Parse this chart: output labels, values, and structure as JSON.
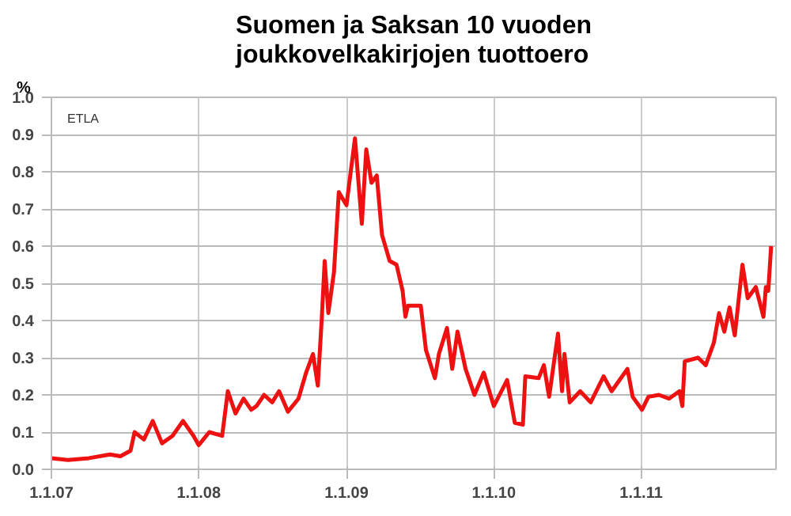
{
  "chart_data": {
    "type": "line",
    "title": "Suomen ja Saksan 10 vuoden joukkovelkakirjojen tuottoero",
    "ylabel": "%",
    "annotations": [
      "ETLA"
    ],
    "x": [
      "2007-01-01",
      "2007-02-11",
      "2007-04-04",
      "2007-05-26",
      "2007-06-21",
      "2007-07-16",
      "2007-07-26",
      "2007-08-18",
      "2007-09-09",
      "2007-10-02",
      "2007-10-28",
      "2007-11-23",
      "2007-12-19",
      "2008-01-01",
      "2008-01-27",
      "2008-02-28",
      "2008-03-13",
      "2008-04-01",
      "2008-04-21",
      "2008-05-10",
      "2008-05-23",
      "2008-06-11",
      "2008-07-01",
      "2008-07-18",
      "2008-08-09",
      "2008-09-04",
      "2008-09-23",
      "2008-10-10",
      "2008-10-22",
      "2008-11-01",
      "2008-11-08",
      "2008-11-17",
      "2008-12-01",
      "2008-12-13",
      "2009-01-01",
      "2009-01-22",
      "2009-02-08",
      "2009-02-19",
      "2009-03-04",
      "2009-03-17",
      "2009-03-30",
      "2009-04-18",
      "2009-05-05",
      "2009-05-20",
      "2009-05-27",
      "2009-06-02",
      "2009-07-04",
      "2009-07-17",
      "2009-08-08",
      "2009-08-18",
      "2009-09-07",
      "2009-09-20",
      "2009-10-03",
      "2009-10-23",
      "2009-11-14",
      "2009-12-07",
      "2010-01-01",
      "2010-02-03",
      "2010-02-22",
      "2010-03-14",
      "2010-03-20",
      "2010-04-22",
      "2010-05-05",
      "2010-05-18",
      "2010-06-09",
      "2010-06-19",
      "2010-06-25",
      "2010-07-08",
      "2010-08-03",
      "2010-08-29",
      "2010-09-30",
      "2010-10-20",
      "2010-11-15",
      "2010-11-28",
      "2010-12-11",
      "2011-01-03",
      "2011-01-19",
      "2011-02-14",
      "2011-03-11",
      "2011-04-06",
      "2011-04-13",
      "2011-04-19",
      "2011-05-22",
      "2011-06-10",
      "2011-06-30",
      "2011-07-13",
      "2011-07-26",
      "2011-08-08",
      "2011-08-21",
      "2011-09-09",
      "2011-09-22",
      "2011-10-12",
      "2011-10-31",
      "2011-11-06",
      "2011-11-12",
      "2011-11-19"
    ],
    "series": [
      {
        "color": "#ee1111",
        "values": [
          0.03,
          0.025,
          0.03,
          0.04,
          0.035,
          0.05,
          0.1,
          0.08,
          0.13,
          0.07,
          0.09,
          0.13,
          0.09,
          0.065,
          0.1,
          0.09,
          0.21,
          0.15,
          0.19,
          0.16,
          0.17,
          0.2,
          0.18,
          0.21,
          0.155,
          0.19,
          0.26,
          0.31,
          0.225,
          0.41,
          0.56,
          0.42,
          0.53,
          0.745,
          0.71,
          0.89,
          0.66,
          0.86,
          0.77,
          0.79,
          0.63,
          0.56,
          0.55,
          0.48,
          0.41,
          0.44,
          0.44,
          0.32,
          0.245,
          0.31,
          0.38,
          0.27,
          0.37,
          0.27,
          0.2,
          0.26,
          0.17,
          0.24,
          0.125,
          0.12,
          0.25,
          0.245,
          0.28,
          0.195,
          0.365,
          0.21,
          0.31,
          0.18,
          0.21,
          0.18,
          0.25,
          0.21,
          0.25,
          0.27,
          0.195,
          0.16,
          0.195,
          0.2,
          0.19,
          0.21,
          0.17,
          0.29,
          0.3,
          0.28,
          0.34,
          0.42,
          0.37,
          0.435,
          0.36,
          0.55,
          0.46,
          0.49,
          0.41,
          0.49,
          0.48,
          0.6
        ]
      }
    ],
    "xlim": [
      "2007-01-01",
      "2011-12-01"
    ],
    "xticks": [
      {
        "value": "2007-01-01",
        "label": "1.1.07"
      },
      {
        "value": "2008-01-01",
        "label": "1.1.08"
      },
      {
        "value": "2009-01-01",
        "label": "1.1.09"
      },
      {
        "value": "2010-01-01",
        "label": "1.1.10"
      },
      {
        "value": "2011-01-01",
        "label": "1.1.11"
      }
    ],
    "ylim": [
      0,
      1
    ],
    "yticks": [
      {
        "value": 0,
        "label": "0.0"
      },
      {
        "value": 0.1,
        "label": "0.1"
      },
      {
        "value": 0.2,
        "label": "0.2"
      },
      {
        "value": 0.3,
        "label": "0.3"
      },
      {
        "value": 0.4,
        "label": "0.4"
      },
      {
        "value": 0.5,
        "label": "0.5"
      },
      {
        "value": 0.6,
        "label": "0.6"
      },
      {
        "value": 0.7,
        "label": "0.7"
      },
      {
        "value": 0.8,
        "label": "0.8"
      },
      {
        "value": 0.9,
        "label": "0.9"
      },
      {
        "value": 1,
        "label": "1.0"
      }
    ],
    "grid": true,
    "marker": "none",
    "line_style": "solid"
  }
}
